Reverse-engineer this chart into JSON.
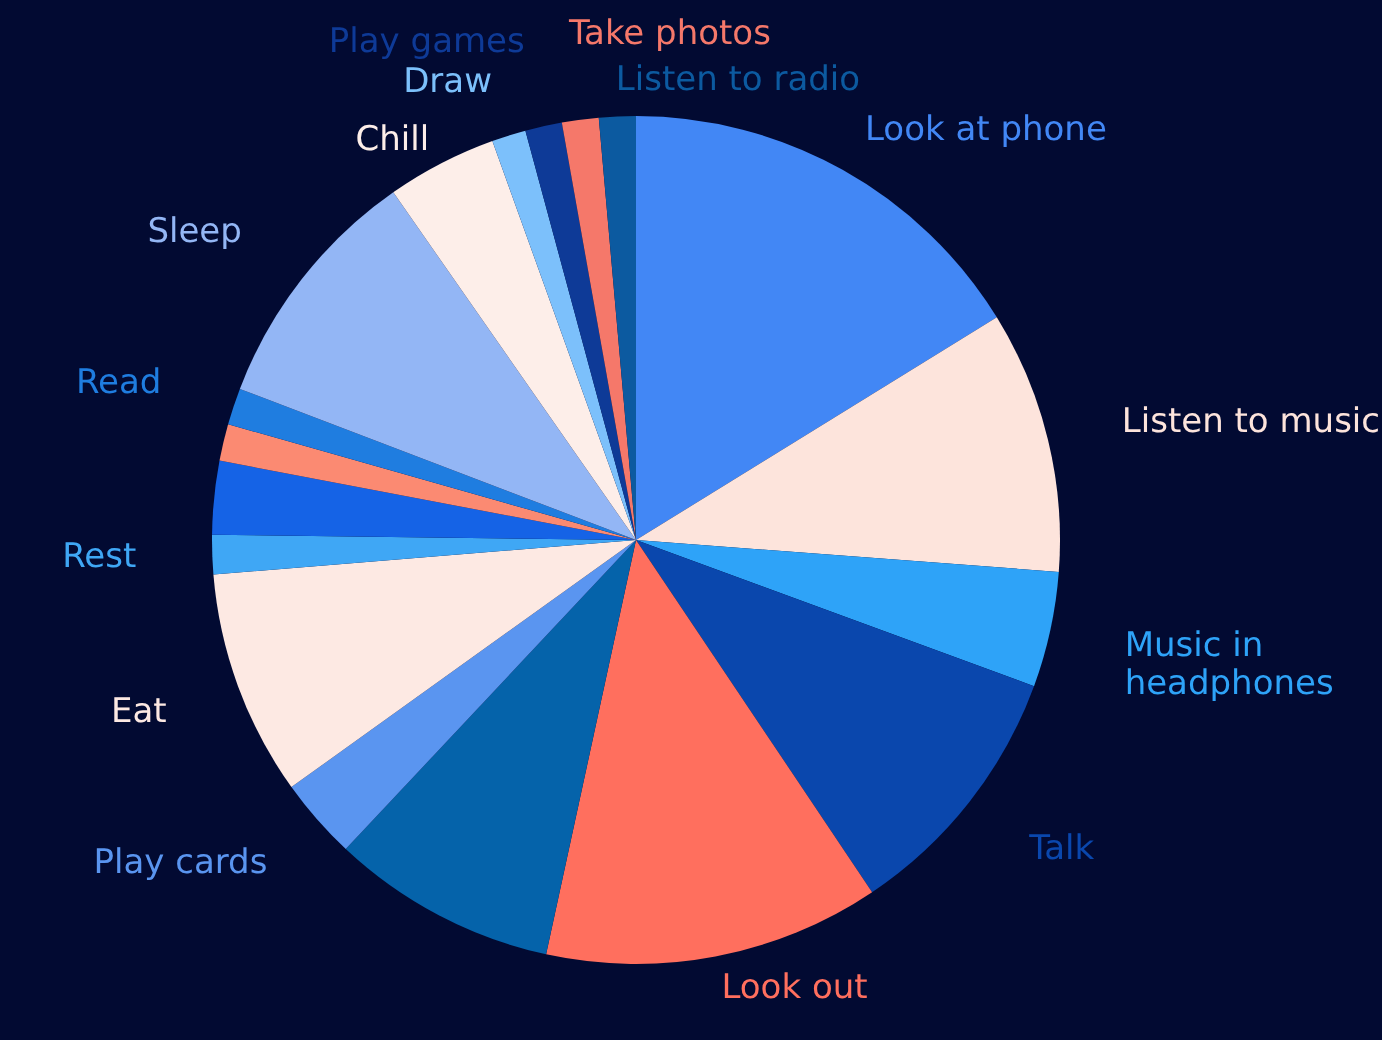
{
  "chart_data": {
    "type": "pie",
    "categories": [
      "Look at phone",
      "Listen to music",
      "Music in headphones",
      "Talk",
      "Look out",
      null,
      "Play cards",
      "Eat",
      "Rest",
      null,
      null,
      "Read",
      "Sleep",
      "Chill",
      "Draw",
      "Play games",
      "Take photos",
      "Listen to radio"
    ],
    "values": [
      16.2,
      10.0,
      4.4,
      10.0,
      12.8,
      8.6,
      3.1,
      8.6,
      1.5,
      2.8,
      1.4,
      1.4,
      9.5,
      4.2,
      1.3,
      1.4,
      1.4,
      1.4
    ],
    "colors": [
      "#4287f5",
      "#fde4dc",
      "#2ea3f8",
      "#0a47ad",
      "#ff6f5e",
      "#0563aa",
      "#5a95f0",
      "#fde9e3",
      "#3fa7f5",
      "#1563e6",
      "#fb8a72",
      "#1f7de0",
      "#93b6f5",
      "#fdeee9",
      "#7cc0fb",
      "#0e3a97",
      "#f5786a",
      "#0c5aa0"
    ]
  }
}
